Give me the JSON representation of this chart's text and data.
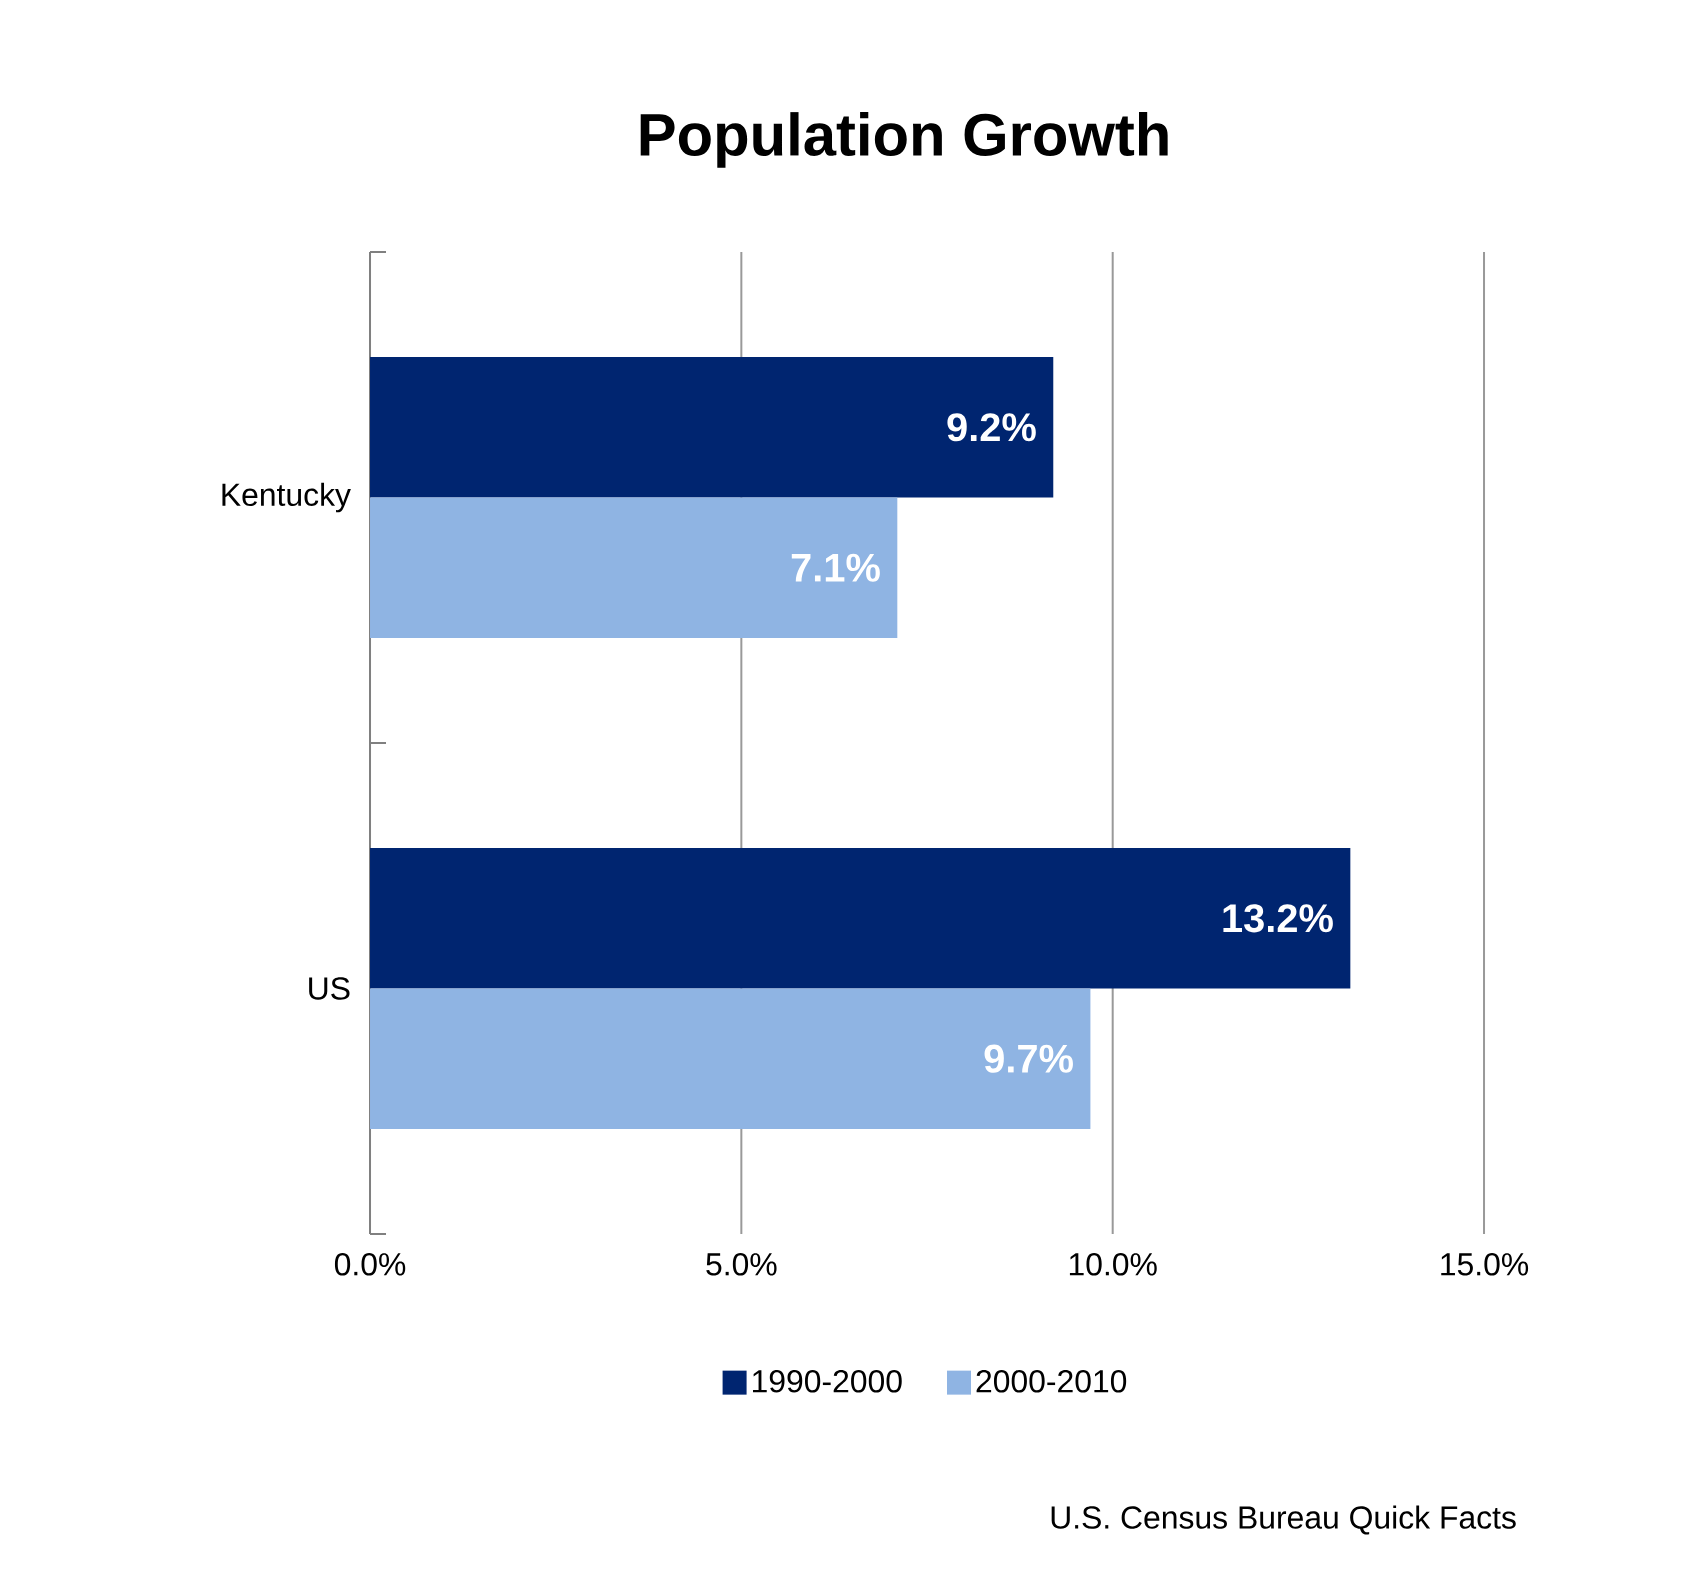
{
  "chart_data": {
    "type": "bar",
    "orientation": "horizontal",
    "title": "Population Growth",
    "categories": [
      "Kentucky",
      "US"
    ],
    "series": [
      {
        "name": "1990-2000",
        "color": "#002570",
        "values": [
          9.2,
          13.2
        ],
        "value_labels": [
          "9.2%",
          "13.2%"
        ]
      },
      {
        "name": "2000-2010",
        "color": "#8fb4e3",
        "values": [
          7.1,
          9.7
        ],
        "value_labels": [
          "7.1%",
          "9.7%"
        ]
      }
    ],
    "xlim": [
      0,
      15
    ],
    "xticks": [
      {
        "value": 0,
        "label": "0.0%"
      },
      {
        "value": 5,
        "label": "5.0%"
      },
      {
        "value": 10,
        "label": "10.0%"
      },
      {
        "value": 15,
        "label": "15.0%"
      }
    ],
    "grid": "x",
    "legend": "bottom",
    "annotations": [
      "U.S. Census Bureau Quick Facts"
    ]
  }
}
